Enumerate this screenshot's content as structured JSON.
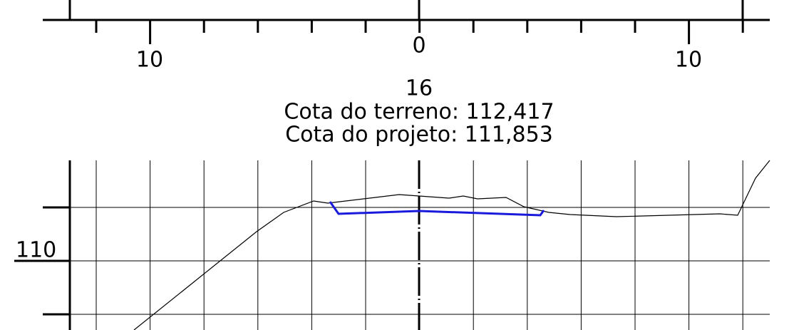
{
  "top_axis": {
    "labels": [
      "10",
      "0",
      "10"
    ]
  },
  "section": {
    "station": "16",
    "terrain_elevation": "Cota do terreno: 112,417",
    "design_elevation": "Cota do projeto: 111,853"
  },
  "elevation_axis": {
    "label": "110"
  }
}
